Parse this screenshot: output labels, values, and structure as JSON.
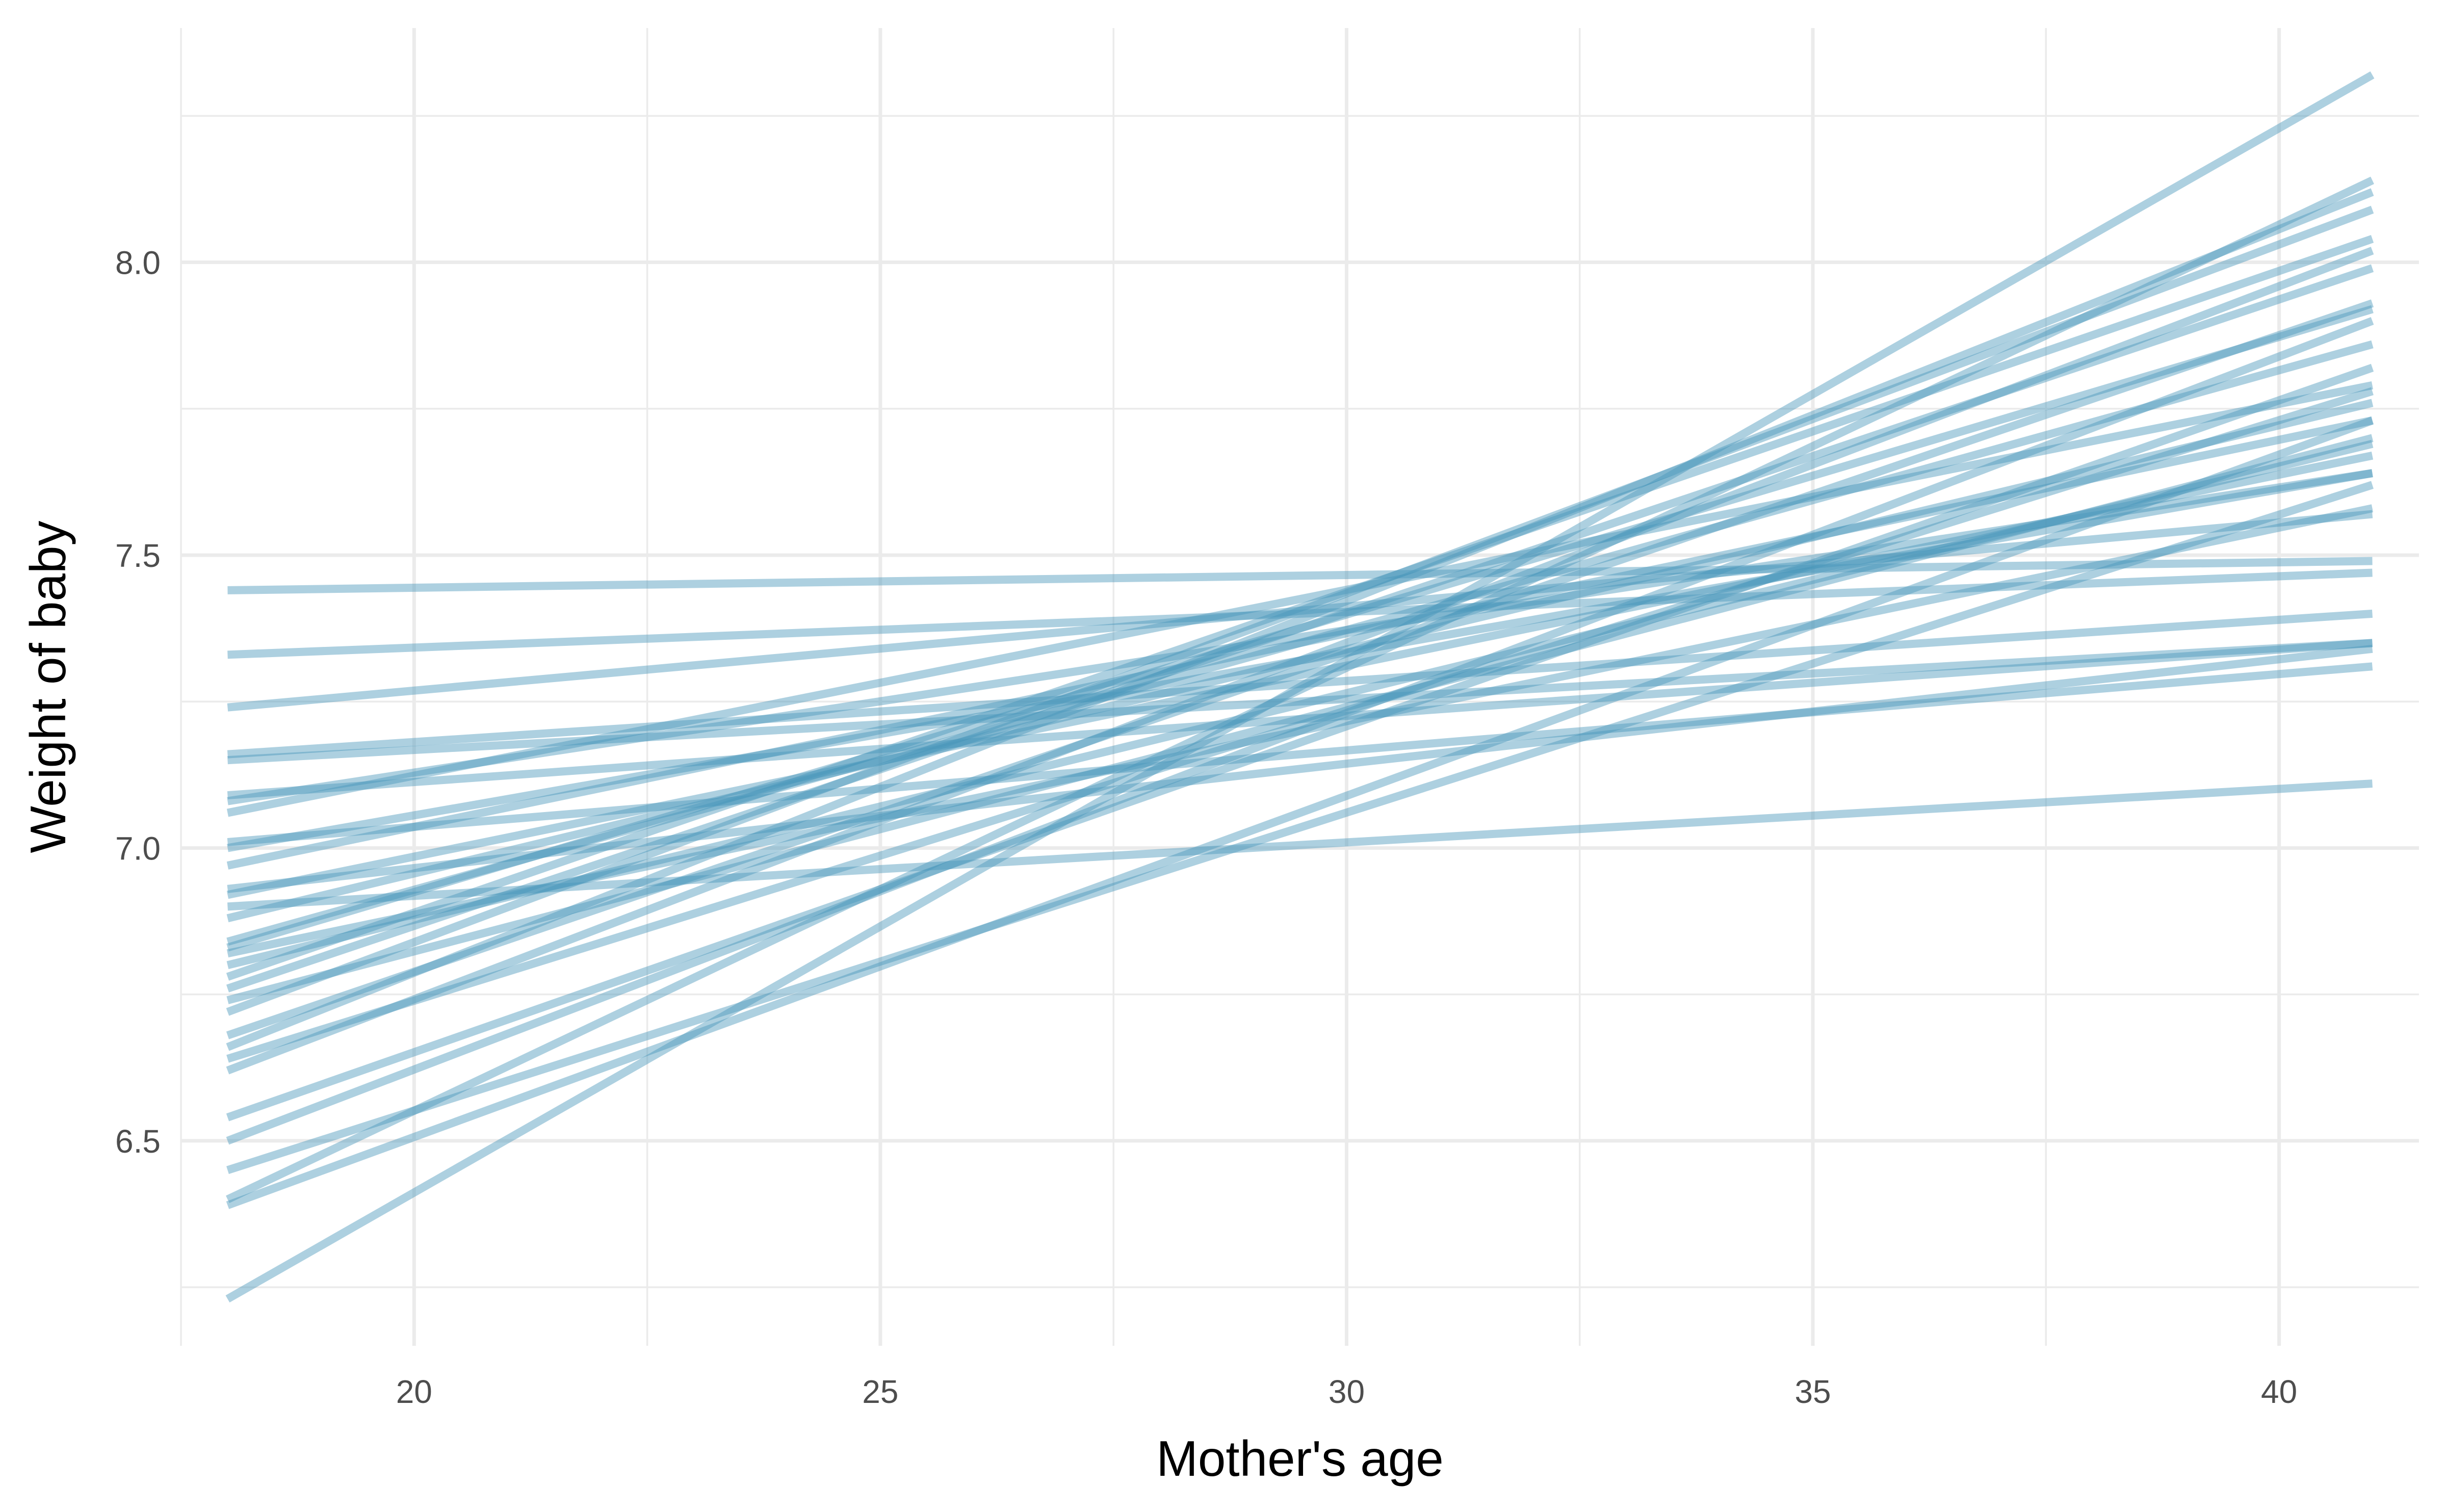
{
  "chart_data": {
    "type": "line",
    "title": "",
    "xlabel": "Mother's age",
    "ylabel": "Weight of baby",
    "xlim": [
      17.5,
      41.5
    ],
    "ylim": [
      6.15,
      8.4
    ],
    "x_ticks": [
      20,
      25,
      30,
      35,
      40
    ],
    "x_tick_labels": [
      "20",
      "25",
      "30",
      "35",
      "40"
    ],
    "y_ticks": [
      6.5,
      7.0,
      7.5,
      8.0
    ],
    "y_tick_labels": [
      "6.5",
      "7.0",
      "7.5",
      "8.0"
    ],
    "x_minor_ticks": [
      17.5,
      22.5,
      27.5,
      32.5,
      37.5
    ],
    "y_minor_ticks": [
      6.25,
      6.75,
      7.25,
      7.75,
      8.25
    ],
    "grid": true,
    "legend": "none",
    "line_color": "#4a97bb",
    "line_opacity": 0.45,
    "x_range": [
      18,
      41
    ],
    "series": [
      {
        "values": [
          7.44,
          7.49
        ]
      },
      {
        "values": [
          7.33,
          7.47
        ]
      },
      {
        "values": [
          7.24,
          7.57
        ]
      },
      {
        "values": [
          7.16,
          7.4
        ]
      },
      {
        "values": [
          7.15,
          7.35
        ]
      },
      {
        "values": [
          7.09,
          7.35
        ]
      },
      {
        "values": [
          7.08,
          7.64
        ]
      },
      {
        "values": [
          7.06,
          7.79
        ]
      },
      {
        "values": [
          7.01,
          7.31
        ]
      },
      {
        "values": [
          7.0,
          7.64
        ]
      },
      {
        "values": [
          6.97,
          7.73
        ]
      },
      {
        "values": [
          6.93,
          7.34
        ]
      },
      {
        "values": [
          6.92,
          7.67
        ]
      },
      {
        "values": [
          6.9,
          7.11
        ]
      },
      {
        "values": [
          6.88,
          7.76
        ]
      },
      {
        "values": [
          6.84,
          7.86
        ]
      },
      {
        "values": [
          6.83,
          7.92
        ]
      },
      {
        "values": [
          6.82,
          7.58
        ]
      },
      {
        "values": [
          6.8,
          7.69
        ]
      },
      {
        "values": [
          6.78,
          8.04
        ]
      },
      {
        "values": [
          6.76,
          7.99
        ]
      },
      {
        "values": [
          6.74,
          7.7
        ]
      },
      {
        "values": [
          6.72,
          8.09
        ]
      },
      {
        "values": [
          6.68,
          7.93
        ]
      },
      {
        "values": [
          6.66,
          8.12
        ]
      },
      {
        "values": [
          6.64,
          7.78
        ]
      },
      {
        "values": [
          6.62,
          8.02
        ]
      },
      {
        "values": [
          6.54,
          7.82
        ]
      },
      {
        "values": [
          6.5,
          7.9
        ]
      },
      {
        "values": [
          6.45,
          7.62
        ]
      },
      {
        "values": [
          6.4,
          8.14
        ]
      },
      {
        "values": [
          6.39,
          7.73
        ]
      },
      {
        "values": [
          6.23,
          8.32
        ]
      }
    ]
  }
}
